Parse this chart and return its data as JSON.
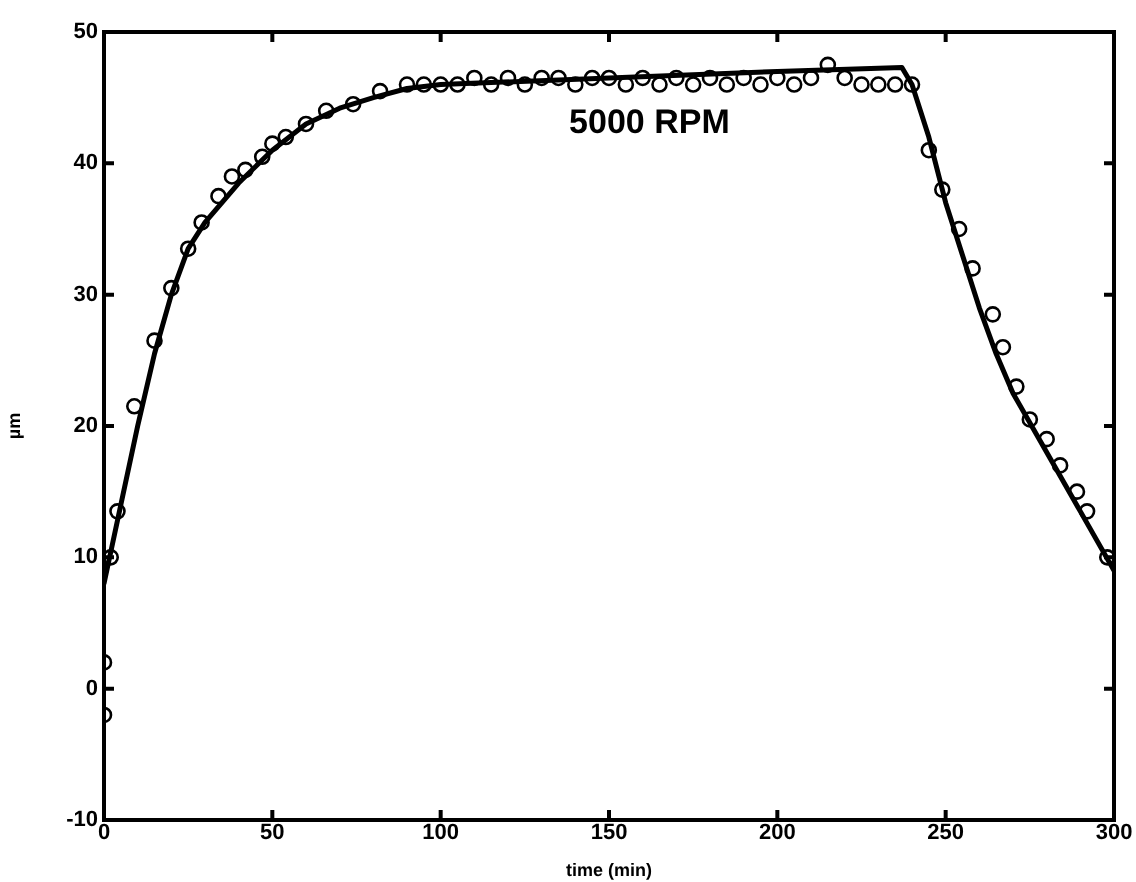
{
  "chart_data": {
    "type": "scatter",
    "xlabel": "time (min)",
    "ylabel": "µm",
    "annotations": [
      "5000 RPM"
    ],
    "xlim": [
      0,
      300
    ],
    "xticks": [
      0,
      50,
      100,
      150,
      200,
      250,
      300
    ],
    "ylim": [
      -10,
      50
    ],
    "yticks": [
      -10,
      0,
      10,
      20,
      30,
      40,
      50
    ],
    "series": [
      {
        "type": "line",
        "color": "#000000",
        "marker": "none",
        "line_style": "solid",
        "x": [
          0,
          5,
          10,
          15,
          20,
          25,
          30,
          40,
          50,
          60,
          70,
          80,
          90,
          100,
          150,
          200,
          237,
          240,
          245,
          250,
          255,
          260,
          265,
          270,
          280,
          290,
          300
        ],
        "values": [
          8,
          14,
          20,
          25.5,
          30,
          33.5,
          35.5,
          38.5,
          41,
          43,
          44.2,
          45,
          45.7,
          46,
          46.5,
          47,
          47.3,
          46,
          42,
          37,
          33,
          29,
          25.5,
          22.5,
          18,
          13.5,
          9
        ]
      },
      {
        "type": "scatter",
        "color": "#000000",
        "marker": "circle",
        "x": [
          0,
          0,
          2,
          4,
          9,
          15,
          20,
          25,
          29,
          34,
          38,
          42,
          47,
          50,
          54,
          60,
          66,
          74,
          82,
          90,
          95,
          100,
          105,
          110,
          115,
          120,
          125,
          130,
          135,
          140,
          145,
          150,
          155,
          160,
          165,
          170,
          175,
          180,
          185,
          190,
          195,
          200,
          205,
          210,
          215,
          220,
          225,
          230,
          235,
          240,
          245,
          249,
          254,
          258,
          264,
          267,
          271,
          275,
          280,
          284,
          289,
          292,
          298
        ],
        "values": [
          -2,
          2,
          10,
          13.5,
          21.5,
          26.5,
          30.5,
          33.5,
          35.5,
          37.5,
          39,
          39.5,
          40.5,
          41.5,
          42,
          43,
          44,
          44.5,
          45.5,
          46,
          46,
          46,
          46,
          46.5,
          46,
          46.5,
          46,
          46.5,
          46.5,
          46,
          46.5,
          46.5,
          46,
          46.5,
          46,
          46.5,
          46,
          46.5,
          46,
          46.5,
          46,
          46.5,
          46,
          46.5,
          47.5,
          46.5,
          46,
          46,
          46,
          46,
          41,
          38,
          35,
          32,
          28.5,
          26,
          23,
          20.5,
          19,
          17,
          15,
          13.5,
          10
        ]
      }
    ]
  }
}
